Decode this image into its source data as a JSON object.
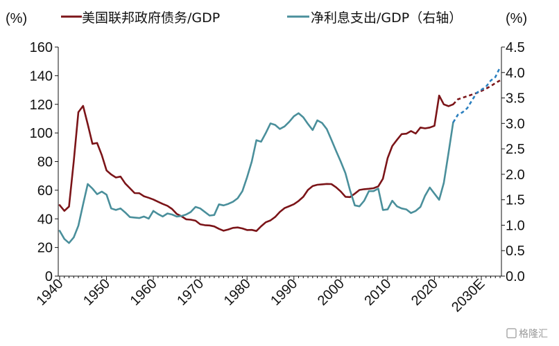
{
  "chart_data": {
    "type": "line",
    "y_left_unit": "(%)",
    "y_right_unit": "(%)",
    "x_ticks": [
      "1940",
      "1950",
      "1960",
      "1970",
      "1980",
      "1990",
      "2000",
      "2010",
      "2020",
      "2030E"
    ],
    "y_left_ticks": [
      "0",
      "20",
      "40",
      "60",
      "80",
      "100",
      "120",
      "140",
      "160"
    ],
    "y_right_ticks": [
      "0.0",
      "0.5",
      "1.0",
      "1.5",
      "2.0",
      "2.5",
      "3.0",
      "3.5",
      "4.0",
      "4.5"
    ],
    "ylim_left": [
      0,
      160
    ],
    "ylim_right": [
      0,
      4.5
    ],
    "xlim": [
      1940,
      2034
    ],
    "series": [
      {
        "name": "美国联邦政府债务/GDP",
        "axis": "left",
        "color": "#7b1418",
        "projection_from": 2024,
        "points": [
          [
            1940,
            49.6
          ],
          [
            1941,
            45.6
          ],
          [
            1942,
            48.6
          ],
          [
            1943,
            80.0
          ],
          [
            1944,
            114.5
          ],
          [
            1945,
            118.9
          ],
          [
            1946,
            106.1
          ],
          [
            1947,
            92.4
          ],
          [
            1948,
            93.0
          ],
          [
            1949,
            84.5
          ],
          [
            1950,
            73.8
          ],
          [
            1951,
            71.0
          ],
          [
            1952,
            68.9
          ],
          [
            1953,
            69.5
          ],
          [
            1954,
            64.7
          ],
          [
            1955,
            61.4
          ],
          [
            1956,
            58.0
          ],
          [
            1957,
            57.9
          ],
          [
            1958,
            55.8
          ],
          [
            1959,
            54.7
          ],
          [
            1960,
            53.5
          ],
          [
            1961,
            51.9
          ],
          [
            1962,
            50.4
          ],
          [
            1963,
            49.1
          ],
          [
            1964,
            46.9
          ],
          [
            1965,
            43.4
          ],
          [
            1966,
            41.8
          ],
          [
            1967,
            39.7
          ],
          [
            1968,
            39.4
          ],
          [
            1969,
            38.7
          ],
          [
            1970,
            36.2
          ],
          [
            1971,
            35.6
          ],
          [
            1972,
            35.4
          ],
          [
            1973,
            34.7
          ],
          [
            1974,
            33.0
          ],
          [
            1975,
            31.7
          ],
          [
            1976,
            32.6
          ],
          [
            1977,
            33.7
          ],
          [
            1978,
            34.0
          ],
          [
            1979,
            33.3
          ],
          [
            1980,
            32.2
          ],
          [
            1981,
            32.3
          ],
          [
            1982,
            31.5
          ],
          [
            1983,
            34.8
          ],
          [
            1984,
            37.6
          ],
          [
            1985,
            38.9
          ],
          [
            1986,
            41.3
          ],
          [
            1987,
            44.8
          ],
          [
            1988,
            47.5
          ],
          [
            1989,
            48.8
          ],
          [
            1990,
            50.2
          ],
          [
            1991,
            52.5
          ],
          [
            1992,
            55.4
          ],
          [
            1993,
            60.2
          ],
          [
            1994,
            62.9
          ],
          [
            1995,
            63.8
          ],
          [
            1996,
            64.1
          ],
          [
            1997,
            64.4
          ],
          [
            1998,
            64.3
          ],
          [
            1999,
            62.0
          ],
          [
            2000,
            59.1
          ],
          [
            2001,
            55.4
          ],
          [
            2002,
            55.2
          ],
          [
            2003,
            57.6
          ],
          [
            2004,
            60.2
          ],
          [
            2005,
            60.7
          ],
          [
            2006,
            61.0
          ],
          [
            2007,
            61.4
          ],
          [
            2008,
            62.7
          ],
          [
            2009,
            68.0
          ],
          [
            2010,
            82.4
          ],
          [
            2011,
            90.9
          ],
          [
            2012,
            95.2
          ],
          [
            2013,
            99.2
          ],
          [
            2014,
            99.5
          ],
          [
            2015,
            101.3
          ],
          [
            2016,
            99.6
          ],
          [
            2017,
            103.8
          ],
          [
            2018,
            103.2
          ],
          [
            2019,
            103.8
          ],
          [
            2020,
            105.0
          ],
          [
            2021,
            126.1
          ],
          [
            2022,
            120.0
          ],
          [
            2023,
            118.7
          ],
          [
            2024,
            120.0
          ],
          [
            2025,
            123.5
          ],
          [
            2026,
            124.6
          ],
          [
            2027,
            125.7
          ],
          [
            2028,
            126.8
          ],
          [
            2029,
            127.9
          ],
          [
            2030,
            129.3
          ],
          [
            2031,
            130.9
          ],
          [
            2032,
            132.7
          ],
          [
            2033,
            134.8
          ],
          [
            2034,
            136.7
          ]
        ]
      },
      {
        "name": "净利息支出/GDP（右轴）",
        "axis": "right",
        "color": "#4a8f9b",
        "projection_color": "#2a7fbf",
        "projection_from": 2024,
        "points": [
          [
            1940,
            0.89
          ],
          [
            1941,
            0.73
          ],
          [
            1942,
            0.65
          ],
          [
            1943,
            0.76
          ],
          [
            1944,
            0.99
          ],
          [
            1945,
            1.41
          ],
          [
            1946,
            1.81
          ],
          [
            1947,
            1.72
          ],
          [
            1948,
            1.61
          ],
          [
            1949,
            1.66
          ],
          [
            1950,
            1.6
          ],
          [
            1951,
            1.33
          ],
          [
            1952,
            1.3
          ],
          [
            1953,
            1.33
          ],
          [
            1954,
            1.25
          ],
          [
            1955,
            1.16
          ],
          [
            1956,
            1.15
          ],
          [
            1957,
            1.14
          ],
          [
            1958,
            1.17
          ],
          [
            1959,
            1.13
          ],
          [
            1960,
            1.28
          ],
          [
            1961,
            1.22
          ],
          [
            1962,
            1.17
          ],
          [
            1963,
            1.23
          ],
          [
            1964,
            1.21
          ],
          [
            1965,
            1.17
          ],
          [
            1966,
            1.18
          ],
          [
            1967,
            1.21
          ],
          [
            1968,
            1.26
          ],
          [
            1969,
            1.36
          ],
          [
            1970,
            1.33
          ],
          [
            1971,
            1.26
          ],
          [
            1972,
            1.19
          ],
          [
            1973,
            1.2
          ],
          [
            1974,
            1.41
          ],
          [
            1975,
            1.39
          ],
          [
            1976,
            1.42
          ],
          [
            1977,
            1.46
          ],
          [
            1978,
            1.53
          ],
          [
            1979,
            1.67
          ],
          [
            1980,
            1.94
          ],
          [
            1981,
            2.25
          ],
          [
            1982,
            2.67
          ],
          [
            1983,
            2.64
          ],
          [
            1984,
            2.81
          ],
          [
            1985,
            3.0
          ],
          [
            1986,
            2.97
          ],
          [
            1987,
            2.89
          ],
          [
            1988,
            2.94
          ],
          [
            1989,
            3.03
          ],
          [
            1990,
            3.14
          ],
          [
            1991,
            3.2
          ],
          [
            1992,
            3.12
          ],
          [
            1993,
            2.99
          ],
          [
            1994,
            2.87
          ],
          [
            1995,
            3.06
          ],
          [
            1996,
            3.01
          ],
          [
            1997,
            2.89
          ],
          [
            1998,
            2.68
          ],
          [
            1999,
            2.46
          ],
          [
            2000,
            2.25
          ],
          [
            2001,
            2.02
          ],
          [
            2002,
            1.68
          ],
          [
            2003,
            1.39
          ],
          [
            2004,
            1.37
          ],
          [
            2005,
            1.48
          ],
          [
            2006,
            1.67
          ],
          [
            2007,
            1.67
          ],
          [
            2008,
            1.72
          ],
          [
            2009,
            1.3
          ],
          [
            2010,
            1.31
          ],
          [
            2011,
            1.48
          ],
          [
            2012,
            1.37
          ],
          [
            2013,
            1.33
          ],
          [
            2014,
            1.31
          ],
          [
            2015,
            1.24
          ],
          [
            2016,
            1.28
          ],
          [
            2017,
            1.36
          ],
          [
            2018,
            1.58
          ],
          [
            2019,
            1.74
          ],
          [
            2020,
            1.62
          ],
          [
            2021,
            1.5
          ],
          [
            2022,
            1.83
          ],
          [
            2023,
            2.42
          ],
          [
            2024,
            3.02
          ],
          [
            2025,
            3.17
          ],
          [
            2026,
            3.22
          ],
          [
            2027,
            3.3
          ],
          [
            2028,
            3.45
          ],
          [
            2029,
            3.6
          ],
          [
            2030,
            3.66
          ],
          [
            2031,
            3.72
          ],
          [
            2032,
            3.84
          ],
          [
            2033,
            3.91
          ],
          [
            2034,
            4.1
          ]
        ]
      }
    ],
    "grid": false,
    "legend": "top"
  },
  "watermark": "格隆汇"
}
